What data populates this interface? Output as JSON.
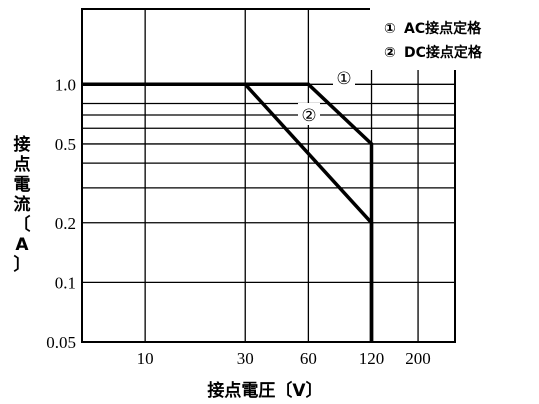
{
  "chart_data": {
    "type": "line",
    "xscale": "log",
    "yscale": "log",
    "xlim": [
      5,
      300
    ],
    "ylim": [
      0.05,
      2.4
    ],
    "xticks": [
      10,
      30,
      60,
      120,
      200
    ],
    "xtick_labels": [
      "10",
      "30",
      "60",
      "120",
      "200"
    ],
    "yticks": [
      0.05,
      0.1,
      0.2,
      0.5,
      1.0
    ],
    "ytick_labels": [
      "0.05",
      "0.1",
      "0.2",
      "0.5",
      "1.0"
    ],
    "xlabel": "接点電圧〔V〕",
    "ylabel": "接点電流〔A〕",
    "grid": true,
    "x_gridlines": [
      10,
      30,
      60,
      120,
      200
    ],
    "y_gridlines": [
      0.1,
      0.2,
      0.3,
      0.4,
      0.5,
      0.6,
      0.7,
      0.8,
      1.0
    ],
    "legend_position": "top-right",
    "legend": [
      {
        "marker": "①",
        "text": "AC接点定格"
      },
      {
        "marker": "②",
        "text": "DC接点定格"
      }
    ],
    "series": [
      {
        "marker": "①",
        "x": [
          5,
          60,
          120,
          120
        ],
        "y": [
          1.0,
          1.0,
          0.5,
          0.05
        ]
      },
      {
        "marker": "②",
        "x": [
          5,
          30,
          120,
          120
        ],
        "y": [
          1.0,
          1.0,
          0.2,
          0.05
        ]
      }
    ],
    "colors": {
      "line": "#000000",
      "grid": "#000000",
      "background": "#ffffff"
    }
  }
}
